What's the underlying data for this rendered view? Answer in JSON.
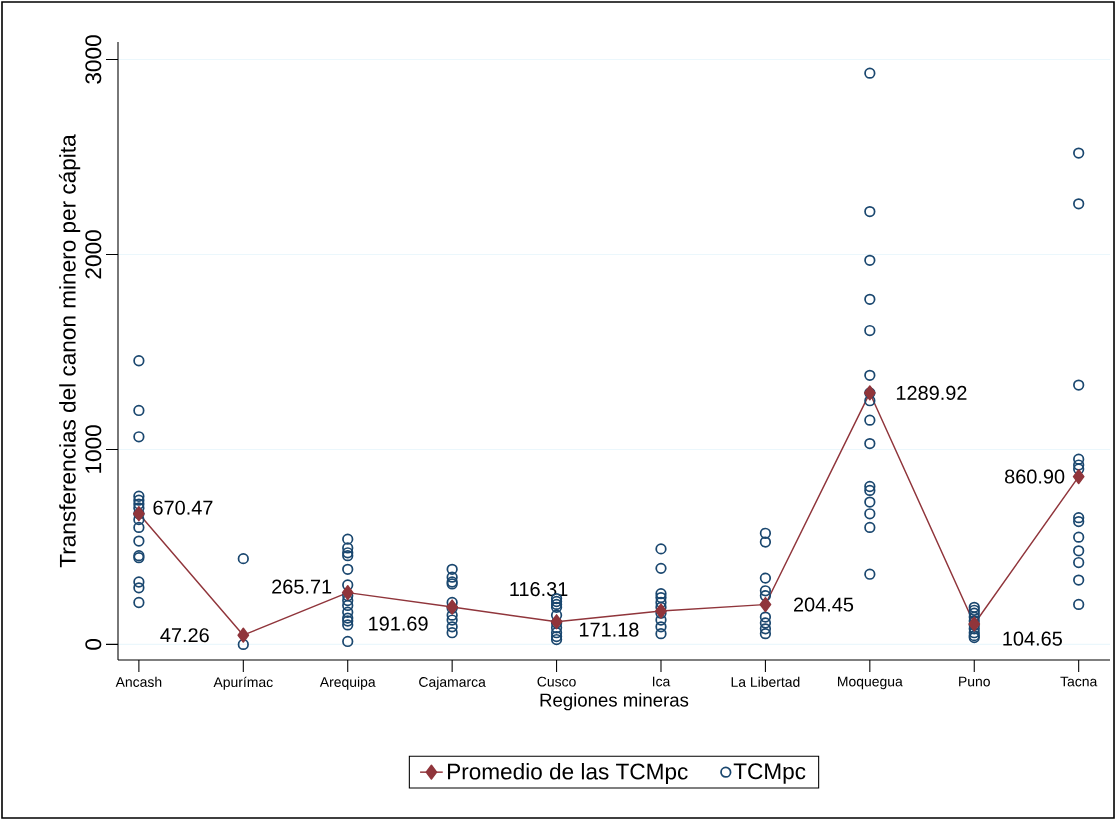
{
  "chart_data": {
    "type": "scatter",
    "xlabel": "Regiones mineras",
    "ylabel": "Transferencias del canon minero per cápita",
    "categories": [
      "Ancash",
      "Apurímac",
      "Arequipa",
      "Cajamarca",
      "Cusco",
      "Ica",
      "La Libertad",
      "Moquegua",
      "Puno",
      "Tacna"
    ],
    "ylim": [
      -80,
      3090
    ],
    "yticks": [
      0,
      1000,
      2000,
      3000
    ],
    "grid": "y",
    "legend": "bottom",
    "series": [
      {
        "name": "Promedio de las TCMpc",
        "type": "line",
        "marker": "diamond",
        "line_style": "solid",
        "color": "#90353b",
        "values": [
          670.47,
          47.26,
          265.71,
          191.69,
          116.31,
          171.18,
          204.45,
          1289.92,
          104.65,
          860.9
        ],
        "value_labels": [
          "670.47",
          "47.26",
          "265.71",
          "191.69",
          "116.31",
          "171.18",
          "204.45",
          "1289.92",
          "104.65",
          "860.90"
        ]
      },
      {
        "name": "TCMpc",
        "marker": "circle",
        "color": "#1a476f",
        "x": [
          "Ancash",
          "Ancash",
          "Ancash",
          "Ancash",
          "Ancash",
          "Ancash",
          "Ancash",
          "Ancash",
          "Ancash",
          "Ancash",
          "Ancash",
          "Ancash",
          "Ancash",
          "Ancash",
          "Ancash",
          "Ancash",
          "Apurímac",
          "Apurímac",
          "Arequipa",
          "Arequipa",
          "Arequipa",
          "Arequipa",
          "Arequipa",
          "Arequipa",
          "Arequipa",
          "Arequipa",
          "Arequipa",
          "Arequipa",
          "Arequipa",
          "Arequipa",
          "Arequipa",
          "Arequipa",
          "Cajamarca",
          "Cajamarca",
          "Cajamarca",
          "Cajamarca",
          "Cajamarca",
          "Cajamarca",
          "Cajamarca",
          "Cajamarca",
          "Cajamarca",
          "Cajamarca",
          "Cusco",
          "Cusco",
          "Cusco",
          "Cusco",
          "Cusco",
          "Cusco",
          "Cusco",
          "Cusco",
          "Cusco",
          "Cusco",
          "Ica",
          "Ica",
          "Ica",
          "Ica",
          "Ica",
          "Ica",
          "Ica",
          "Ica",
          "Ica",
          "Ica",
          "La Libertad",
          "La Libertad",
          "La Libertad",
          "La Libertad",
          "La Libertad",
          "La Libertad",
          "La Libertad",
          "La Libertad",
          "La Libertad",
          "Moquegua",
          "Moquegua",
          "Moquegua",
          "Moquegua",
          "Moquegua",
          "Moquegua",
          "Moquegua",
          "Moquegua",
          "Moquegua",
          "Moquegua",
          "Moquegua",
          "Moquegua",
          "Moquegua",
          "Moquegua",
          "Moquegua",
          "Moquegua",
          "Puno",
          "Puno",
          "Puno",
          "Puno",
          "Puno",
          "Puno",
          "Puno",
          "Puno",
          "Puno",
          "Puno",
          "Tacna",
          "Tacna",
          "Tacna",
          "Tacna",
          "Tacna",
          "Tacna",
          "Tacna",
          "Tacna",
          "Tacna",
          "Tacna",
          "Tacna",
          "Tacna",
          "Tacna"
        ],
        "values": [
          1455,
          1200,
          1065,
          760,
          740,
          720,
          700,
          670,
          640,
          600,
          530,
          455,
          445,
          320,
          290,
          215,
          440,
          0,
          540,
          495,
          470,
          455,
          385,
          305,
          250,
          225,
          200,
          165,
          135,
          120,
          100,
          15,
          385,
          345,
          320,
          310,
          215,
          185,
          150,
          125,
          90,
          60,
          235,
          220,
          205,
          190,
          150,
          110,
          85,
          60,
          40,
          25,
          490,
          390,
          260,
          240,
          215,
          190,
          160,
          125,
          90,
          55,
          570,
          525,
          340,
          275,
          250,
          140,
          110,
          80,
          55,
          2930,
          2220,
          1970,
          1770,
          1610,
          1380,
          1290,
          1250,
          1150,
          1030,
          810,
          790,
          730,
          670,
          600,
          360,
          190,
          175,
          160,
          140,
          120,
          100,
          80,
          60,
          45,
          35,
          2520,
          2260,
          1330,
          950,
          920,
          900,
          650,
          630,
          550,
          480,
          420,
          330,
          205
        ]
      }
    ]
  }
}
